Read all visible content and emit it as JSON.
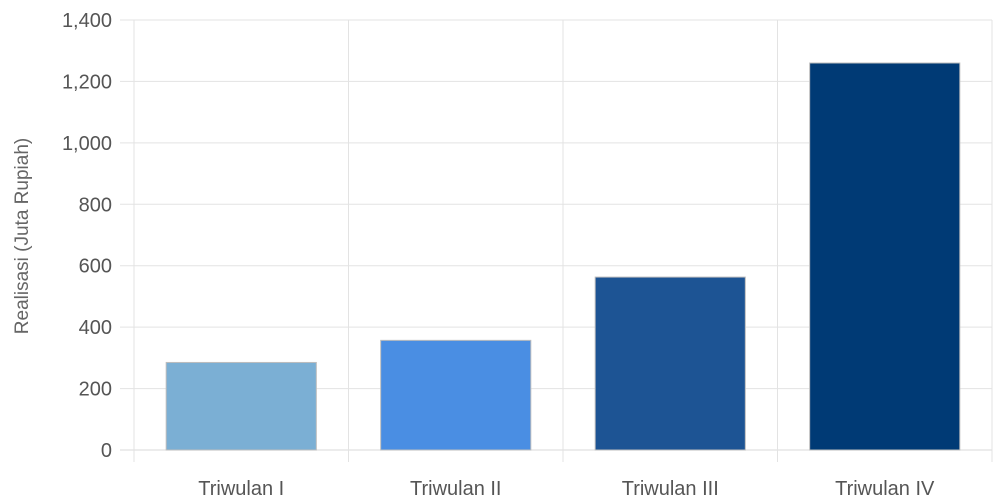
{
  "chart_data": {
    "type": "bar",
    "title": "",
    "xlabel": "",
    "ylabel": "Realisasi (Juta Rupiah)",
    "categories": [
      "Triwulan I",
      "Triwulan II",
      "Triwulan III",
      "Triwulan IV"
    ],
    "values": [
      285,
      357,
      563,
      1260
    ],
    "colors": [
      "#7bafd4",
      "#4a8ee3",
      "#1d5494",
      "#003a75"
    ],
    "ylim": [
      0,
      1400
    ],
    "yticks": [
      0,
      200,
      400,
      600,
      800,
      1000,
      1200,
      1400
    ],
    "ytick_labels": [
      "0",
      "200",
      "400",
      "600",
      "800",
      "1,000",
      "1,200",
      "1,400"
    ],
    "grid": true,
    "legend": "none"
  }
}
